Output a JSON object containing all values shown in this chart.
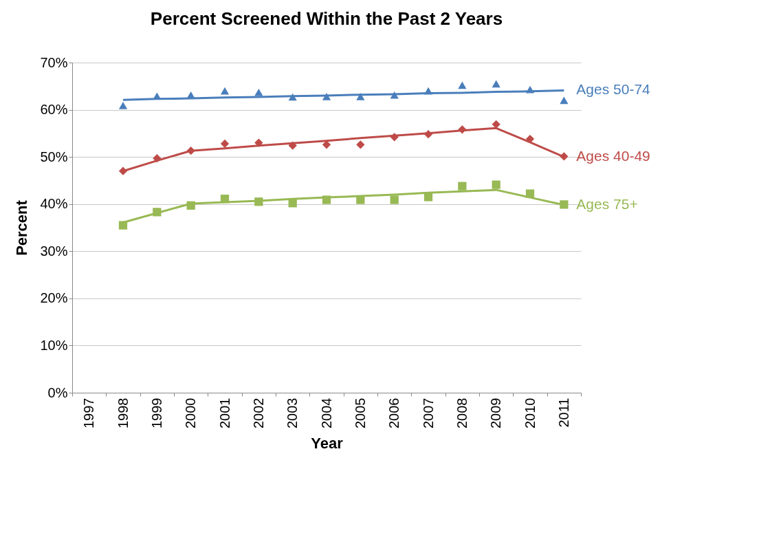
{
  "chart_data": {
    "type": "scatter",
    "title": "Percent Screened Within the Past 2 Years",
    "xlabel": "Year",
    "ylabel": "Percent",
    "categories": [
      "1997",
      "1998",
      "1999",
      "2000",
      "2001",
      "2002",
      "2003",
      "2004",
      "2005",
      "2006",
      "2007",
      "2008",
      "2009",
      "2010",
      "2011"
    ],
    "ylim": [
      0,
      70
    ],
    "yticks": [
      {
        "value": 0,
        "label": "0%"
      },
      {
        "value": 10,
        "label": "10%"
      },
      {
        "value": 20,
        "label": "20%"
      },
      {
        "value": 30,
        "label": "30%"
      },
      {
        "value": 40,
        "label": "40%"
      },
      {
        "value": 50,
        "label": "50%"
      },
      {
        "value": 60,
        "label": "60%"
      },
      {
        "value": 70,
        "label": "70%"
      }
    ],
    "grid": "y",
    "series": [
      {
        "marker": "triangle",
        "color": "#4a7ebb",
        "values": [
          null,
          60.9,
          62.9,
          63.1,
          64.0,
          63.7,
          62.7,
          62.8,
          62.8,
          63.1,
          64.0,
          65.2,
          65.5,
          64.3,
          62.0
        ]
      },
      {
        "marker": "diamond",
        "color": "#be4b48",
        "values": [
          null,
          47.0,
          49.7,
          51.3,
          52.8,
          53.0,
          52.4,
          52.6,
          52.6,
          54.2,
          54.8,
          55.8,
          56.9,
          53.8,
          50.1
        ]
      },
      {
        "marker": "square",
        "color": "#98b954",
        "values": [
          null,
          35.5,
          38.3,
          39.7,
          41.1,
          40.5,
          40.2,
          40.9,
          40.9,
          40.9,
          41.5,
          43.8,
          44.1,
          42.2,
          39.9
        ]
      },
      {
        "type": "line",
        "name": "Ages 50-74",
        "color": "#4a7ebb",
        "values": [
          null,
          62.1,
          62.3,
          62.4,
          62.6,
          62.7,
          62.9,
          63.0,
          63.2,
          63.3,
          63.5,
          63.6,
          63.8,
          63.9,
          64.1
        ]
      },
      {
        "type": "line",
        "name": "Ages 40-49",
        "color": "#be4b48",
        "values": [
          null,
          47.0,
          49.2,
          51.3,
          51.8,
          52.4,
          52.9,
          53.4,
          54.0,
          54.5,
          55.0,
          55.6,
          56.1,
          53.1,
          50.0
        ]
      },
      {
        "type": "line",
        "name": "Ages 75+",
        "color": "#98b954",
        "values": [
          null,
          36.1,
          38.1,
          40.1,
          40.4,
          40.7,
          41.1,
          41.4,
          41.7,
          42.0,
          42.4,
          42.7,
          43.0,
          41.4,
          39.8
        ]
      }
    ]
  }
}
